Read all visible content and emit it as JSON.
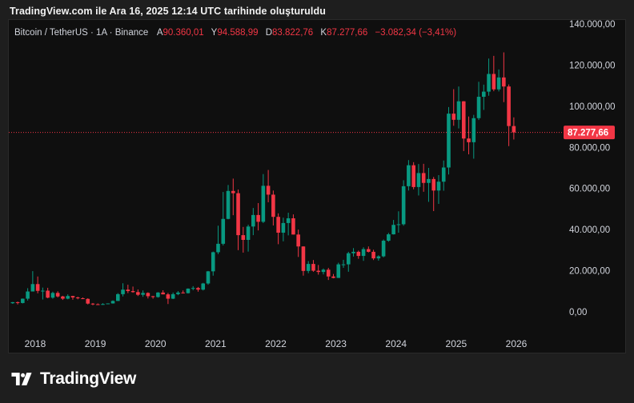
{
  "caption": "TradingView.com ile Ara 16, 2025 12:14 UTC tarihinde oluşturuldu",
  "legend": {
    "symbol": "Bitcoin / TetherUS · 1A · Binance",
    "open_label": "A",
    "open": "90.360,01",
    "high_label": "Y",
    "high": "94.588,99",
    "low_label": "D",
    "low": "83.822,76",
    "close_label": "K",
    "close": "87.277,66",
    "change": "−3.082,34 (−3,41%)"
  },
  "price_tag": "87.277,66",
  "brand": "TradingView",
  "colors": {
    "up": "#089981",
    "down": "#f23645",
    "background": "#0f0f0f",
    "price_line": "#f23645"
  },
  "chart_data": {
    "type": "candlestick",
    "interval": "1 month",
    "y_ticks": [
      0,
      20000,
      40000,
      60000,
      80000,
      100000,
      120000,
      140000
    ],
    "y_tick_labels": [
      "0,00",
      "20.000,00",
      "40.000,00",
      "60.000,00",
      "80.000,00",
      "100.000,00",
      "120.000,00",
      "140.000,00"
    ],
    "x_ticks": [
      2018,
      2019,
      2020,
      2021,
      2022,
      2023,
      2024,
      2025,
      2026
    ],
    "x_tick_labels": [
      "2018",
      "2019",
      "2020",
      "2021",
      "2022",
      "2023",
      "2024",
      "2025",
      "2026"
    ],
    "ylim": [
      -5000,
      140000
    ],
    "last_price": 87277.66,
    "grid": false,
    "candles": [
      {
        "t": "2017-08",
        "o": 4200,
        "h": 4800,
        "l": 3900,
        "c": 4700
      },
      {
        "t": "2017-09",
        "o": 4700,
        "h": 5000,
        "l": 3600,
        "c": 4300
      },
      {
        "t": "2017-10",
        "o": 4300,
        "h": 6500,
        "l": 4100,
        "c": 6400
      },
      {
        "t": "2017-11",
        "o": 6400,
        "h": 11500,
        "l": 5500,
        "c": 9900
      },
      {
        "t": "2017-12",
        "o": 9900,
        "h": 19800,
        "l": 10000,
        "c": 13500
      },
      {
        "t": "2018-01",
        "o": 13500,
        "h": 17200,
        "l": 9000,
        "c": 10200
      },
      {
        "t": "2018-02",
        "o": 10200,
        "h": 11800,
        "l": 6000,
        "c": 10300
      },
      {
        "t": "2018-03",
        "o": 10300,
        "h": 11700,
        "l": 6600,
        "c": 6900
      },
      {
        "t": "2018-04",
        "o": 6900,
        "h": 9800,
        "l": 6400,
        "c": 9200
      },
      {
        "t": "2018-05",
        "o": 9200,
        "h": 10000,
        "l": 7000,
        "c": 7500
      },
      {
        "t": "2018-06",
        "o": 7500,
        "h": 7800,
        "l": 5800,
        "c": 6400
      },
      {
        "t": "2018-07",
        "o": 6400,
        "h": 8500,
        "l": 6100,
        "c": 7700
      },
      {
        "t": "2018-08",
        "o": 7700,
        "h": 7800,
        "l": 5900,
        "c": 7000
      },
      {
        "t": "2018-09",
        "o": 7000,
        "h": 7400,
        "l": 6100,
        "c": 6600
      },
      {
        "t": "2018-10",
        "o": 6600,
        "h": 7000,
        "l": 6200,
        "c": 6300
      },
      {
        "t": "2018-11",
        "o": 6300,
        "h": 6600,
        "l": 3600,
        "c": 4000
      },
      {
        "t": "2018-12",
        "o": 4000,
        "h": 4300,
        "l": 3200,
        "c": 3700
      },
      {
        "t": "2019-01",
        "o": 3700,
        "h": 4100,
        "l": 3300,
        "c": 3400
      },
      {
        "t": "2019-02",
        "o": 3400,
        "h": 4200,
        "l": 3400,
        "c": 3800
      },
      {
        "t": "2019-03",
        "o": 3800,
        "h": 4100,
        "l": 3700,
        "c": 4100
      },
      {
        "t": "2019-04",
        "o": 4100,
        "h": 5600,
        "l": 4000,
        "c": 5300
      },
      {
        "t": "2019-05",
        "o": 5300,
        "h": 9100,
        "l": 5300,
        "c": 8600
      },
      {
        "t": "2019-06",
        "o": 8600,
        "h": 13900,
        "l": 7500,
        "c": 10800
      },
      {
        "t": "2019-07",
        "o": 10800,
        "h": 13200,
        "l": 9100,
        "c": 10100
      },
      {
        "t": "2019-08",
        "o": 10100,
        "h": 12300,
        "l": 9300,
        "c": 9600
      },
      {
        "t": "2019-09",
        "o": 9600,
        "h": 10900,
        "l": 7700,
        "c": 8300
      },
      {
        "t": "2019-10",
        "o": 8300,
        "h": 10400,
        "l": 7300,
        "c": 9200
      },
      {
        "t": "2019-11",
        "o": 9200,
        "h": 9500,
        "l": 6500,
        "c": 7600
      },
      {
        "t": "2019-12",
        "o": 7600,
        "h": 7800,
        "l": 6400,
        "c": 7200
      },
      {
        "t": "2020-01",
        "o": 7200,
        "h": 9600,
        "l": 6900,
        "c": 9400
      },
      {
        "t": "2020-02",
        "o": 9400,
        "h": 10500,
        "l": 8500,
        "c": 8500
      },
      {
        "t": "2020-03",
        "o": 8500,
        "h": 9200,
        "l": 3800,
        "c": 6400
      },
      {
        "t": "2020-04",
        "o": 6400,
        "h": 9400,
        "l": 6200,
        "c": 8600
      },
      {
        "t": "2020-05",
        "o": 8600,
        "h": 10100,
        "l": 8100,
        "c": 9400
      },
      {
        "t": "2020-06",
        "o": 9400,
        "h": 10400,
        "l": 8900,
        "c": 9100
      },
      {
        "t": "2020-07",
        "o": 9100,
        "h": 11400,
        "l": 8900,
        "c": 11300
      },
      {
        "t": "2020-08",
        "o": 11300,
        "h": 12500,
        "l": 10500,
        "c": 11600
      },
      {
        "t": "2020-09",
        "o": 11600,
        "h": 12100,
        "l": 9800,
        "c": 10800
      },
      {
        "t": "2020-10",
        "o": 10800,
        "h": 14100,
        "l": 10400,
        "c": 13800
      },
      {
        "t": "2020-11",
        "o": 13800,
        "h": 19900,
        "l": 13200,
        "c": 19700
      },
      {
        "t": "2020-12",
        "o": 19700,
        "h": 29300,
        "l": 17600,
        "c": 29000
      },
      {
        "t": "2021-01",
        "o": 29000,
        "h": 41900,
        "l": 28100,
        "c": 33100
      },
      {
        "t": "2021-02",
        "o": 33100,
        "h": 58300,
        "l": 32300,
        "c": 45200
      },
      {
        "t": "2021-03",
        "o": 45200,
        "h": 61700,
        "l": 45000,
        "c": 58800
      },
      {
        "t": "2021-04",
        "o": 58800,
        "h": 64800,
        "l": 47000,
        "c": 57700
      },
      {
        "t": "2021-05",
        "o": 57700,
        "h": 59500,
        "l": 30000,
        "c": 37300
      },
      {
        "t": "2021-06",
        "o": 37300,
        "h": 41300,
        "l": 28800,
        "c": 35000
      },
      {
        "t": "2021-07",
        "o": 35000,
        "h": 42400,
        "l": 29300,
        "c": 41500
      },
      {
        "t": "2021-08",
        "o": 41500,
        "h": 50500,
        "l": 37300,
        "c": 47100
      },
      {
        "t": "2021-09",
        "o": 47100,
        "h": 52900,
        "l": 39600,
        "c": 43800
      },
      {
        "t": "2021-10",
        "o": 43800,
        "h": 67000,
        "l": 43200,
        "c": 61300
      },
      {
        "t": "2021-11",
        "o": 61300,
        "h": 69000,
        "l": 53300,
        "c": 57000
      },
      {
        "t": "2021-12",
        "o": 57000,
        "h": 59000,
        "l": 42000,
        "c": 46200
      },
      {
        "t": "2022-01",
        "o": 46200,
        "h": 47900,
        "l": 32900,
        "c": 38500
      },
      {
        "t": "2022-02",
        "o": 38500,
        "h": 45800,
        "l": 34300,
        "c": 43200
      },
      {
        "t": "2022-03",
        "o": 43200,
        "h": 48200,
        "l": 37200,
        "c": 45500
      },
      {
        "t": "2022-04",
        "o": 45500,
        "h": 47400,
        "l": 37600,
        "c": 37600
      },
      {
        "t": "2022-05",
        "o": 37600,
        "h": 40000,
        "l": 26700,
        "c": 31800
      },
      {
        "t": "2022-06",
        "o": 31800,
        "h": 31900,
        "l": 17600,
        "c": 19900
      },
      {
        "t": "2022-07",
        "o": 19900,
        "h": 24700,
        "l": 18800,
        "c": 23300
      },
      {
        "t": "2022-08",
        "o": 23300,
        "h": 25200,
        "l": 19500,
        "c": 20000
      },
      {
        "t": "2022-09",
        "o": 20000,
        "h": 22800,
        "l": 18100,
        "c": 19400
      },
      {
        "t": "2022-10",
        "o": 19400,
        "h": 21100,
        "l": 18200,
        "c": 20500
      },
      {
        "t": "2022-11",
        "o": 20500,
        "h": 21400,
        "l": 15500,
        "c": 17200
      },
      {
        "t": "2022-12",
        "o": 17200,
        "h": 18400,
        "l": 16300,
        "c": 16500
      },
      {
        "t": "2023-01",
        "o": 16500,
        "h": 23900,
        "l": 16500,
        "c": 23100
      },
      {
        "t": "2023-02",
        "o": 23100,
        "h": 25300,
        "l": 21400,
        "c": 23100
      },
      {
        "t": "2023-03",
        "o": 23100,
        "h": 29200,
        "l": 19500,
        "c": 28500
      },
      {
        "t": "2023-04",
        "o": 28500,
        "h": 31000,
        "l": 26900,
        "c": 29200
      },
      {
        "t": "2023-05",
        "o": 29200,
        "h": 29800,
        "l": 25800,
        "c": 27200
      },
      {
        "t": "2023-06",
        "o": 27200,
        "h": 31400,
        "l": 24800,
        "c": 30500
      },
      {
        "t": "2023-07",
        "o": 30500,
        "h": 31800,
        "l": 28900,
        "c": 29200
      },
      {
        "t": "2023-08",
        "o": 29200,
        "h": 30200,
        "l": 25200,
        "c": 26000
      },
      {
        "t": "2023-09",
        "o": 26000,
        "h": 27500,
        "l": 24900,
        "c": 27000
      },
      {
        "t": "2023-10",
        "o": 27000,
        "h": 35200,
        "l": 26500,
        "c": 34600
      },
      {
        "t": "2023-11",
        "o": 34600,
        "h": 38400,
        "l": 34100,
        "c": 37700
      },
      {
        "t": "2023-12",
        "o": 37700,
        "h": 44700,
        "l": 37600,
        "c": 42300
      },
      {
        "t": "2024-01",
        "o": 42300,
        "h": 48900,
        "l": 38500,
        "c": 42600
      },
      {
        "t": "2024-02",
        "o": 42600,
        "h": 64000,
        "l": 41900,
        "c": 61100
      },
      {
        "t": "2024-03",
        "o": 61100,
        "h": 73800,
        "l": 59000,
        "c": 71300
      },
      {
        "t": "2024-04",
        "o": 71300,
        "h": 72800,
        "l": 59600,
        "c": 60700
      },
      {
        "t": "2024-05",
        "o": 60700,
        "h": 71900,
        "l": 56600,
        "c": 67500
      },
      {
        "t": "2024-06",
        "o": 67500,
        "h": 72000,
        "l": 58400,
        "c": 62700
      },
      {
        "t": "2024-07",
        "o": 62700,
        "h": 70000,
        "l": 53500,
        "c": 64600
      },
      {
        "t": "2024-08",
        "o": 64600,
        "h": 65600,
        "l": 49000,
        "c": 59000
      },
      {
        "t": "2024-09",
        "o": 59000,
        "h": 66500,
        "l": 52500,
        "c": 63300
      },
      {
        "t": "2024-10",
        "o": 63300,
        "h": 73600,
        "l": 58900,
        "c": 70200
      },
      {
        "t": "2024-11",
        "o": 70200,
        "h": 99600,
        "l": 66800,
        "c": 96400
      },
      {
        "t": "2024-12",
        "o": 96400,
        "h": 108300,
        "l": 90500,
        "c": 93400
      },
      {
        "t": "2025-01",
        "o": 93400,
        "h": 109600,
        "l": 89200,
        "c": 102400
      },
      {
        "t": "2025-02",
        "o": 102400,
        "h": 102500,
        "l": 78200,
        "c": 84300
      },
      {
        "t": "2025-03",
        "o": 84300,
        "h": 95000,
        "l": 76600,
        "c": 82500
      },
      {
        "t": "2025-04",
        "o": 82500,
        "h": 95800,
        "l": 74500,
        "c": 94200
      },
      {
        "t": "2025-05",
        "o": 94200,
        "h": 111900,
        "l": 93300,
        "c": 104600
      },
      {
        "t": "2025-06",
        "o": 104600,
        "h": 110500,
        "l": 98200,
        "c": 107100
      },
      {
        "t": "2025-07",
        "o": 107100,
        "h": 123200,
        "l": 105100,
        "c": 115700
      },
      {
        "t": "2025-08",
        "o": 115700,
        "h": 124500,
        "l": 107300,
        "c": 108200
      },
      {
        "t": "2025-09",
        "o": 108200,
        "h": 117900,
        "l": 107200,
        "c": 114000
      },
      {
        "t": "2025-10",
        "o": 114000,
        "h": 126200,
        "l": 102000,
        "c": 109600
      },
      {
        "t": "2025-11",
        "o": 109600,
        "h": 110600,
        "l": 80600,
        "c": 90360
      },
      {
        "t": "2025-12",
        "o": 90360,
        "h": 94589,
        "l": 83823,
        "c": 87278
      }
    ]
  }
}
